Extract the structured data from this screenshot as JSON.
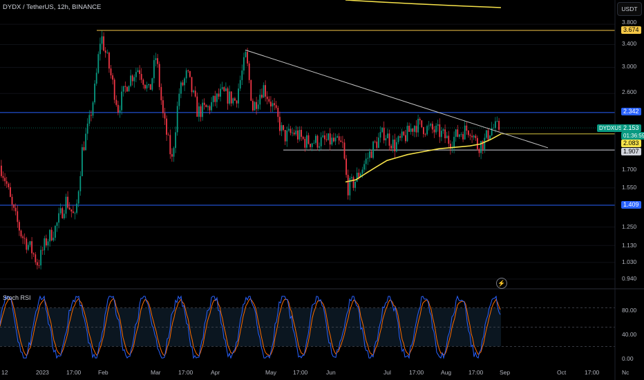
{
  "header": {
    "symbol_title": "DYDX / TetherUS, 12h, BINANCE",
    "currency_button": "USDT"
  },
  "indicator": {
    "title": "Stoch RSI",
    "levels": [
      "80.00",
      "40.00",
      "0.00"
    ],
    "colors": {
      "k": "#2962ff",
      "d": "#ff6d00"
    }
  },
  "price_axis": {
    "ticks": [
      "3.800",
      "3.400",
      "3.000",
      "2.600",
      "1.700",
      "1.550",
      "1.250",
      "1.130",
      "1.030",
      "0.940"
    ]
  },
  "time_axis": {
    "ticks": [
      "12",
      "2023",
      "17:00",
      "Feb",
      "Mar",
      "17:00",
      "Apr",
      "May",
      "17:00",
      "Jun",
      "Jul",
      "17:00",
      "Aug",
      "17:00",
      "Sep",
      "Oct",
      "17:00",
      "Nc"
    ]
  },
  "price_labels": {
    "resistance_top": {
      "value": "3.674",
      "bg": "#f7c948",
      "fg": "#000000"
    },
    "resistance_blue": {
      "value": "2.342",
      "bg": "#2962ff",
      "fg": "#ffffff"
    },
    "symbol_tag": {
      "symbol": "DYDXUSDT",
      "price": "2.153",
      "countdown": "01:36:59",
      "bg": "#089981",
      "fg": "#ffffff"
    },
    "ma_value": {
      "value": "2.083",
      "bg": "#f7e34a",
      "fg": "#000000"
    },
    "support_white": {
      "value": "1.907",
      "bg": "#d1d4dc",
      "fg": "#000000"
    },
    "support_blue": {
      "value": "1.409",
      "bg": "#2962ff",
      "fg": "#ffffff"
    }
  },
  "chart_data": {
    "type": "candlestick",
    "title": "DYDX / TetherUS, 12h, BINANCE",
    "y_scale": "log",
    "ylim": [
      0.9,
      4.2
    ],
    "colors": {
      "up": "#089981",
      "down": "#f23645",
      "moving_average": "#f7e34a",
      "blue_levels": "#2962ff",
      "gold_level": "#f7c948",
      "trendline": "#c8c8c8"
    },
    "horizontal_levels": [
      {
        "value": 3.674,
        "color": "#f7c948"
      },
      {
        "value": 2.342,
        "color": "#2962ff"
      },
      {
        "value": 1.907,
        "color": "#d1d4dc"
      },
      {
        "value": 1.409,
        "color": "#2962ff"
      }
    ],
    "trendline": {
      "start_price": 3.3,
      "end_price": 1.93
    },
    "last_price": 2.153,
    "moving_average_last": 2.083,
    "close_path_anchors": [
      [
        0,
        1.75
      ],
      [
        8,
        1.6
      ],
      [
        16,
        1.4
      ],
      [
        30,
        1.2
      ],
      [
        45,
        1.1
      ],
      [
        54,
        1.02
      ],
      [
        65,
        1.15
      ],
      [
        80,
        1.25
      ],
      [
        95,
        1.45
      ],
      [
        108,
        1.3
      ],
      [
        118,
        1.9
      ],
      [
        128,
        2.2
      ],
      [
        137,
        2.7
      ],
      [
        145,
        3.6
      ],
      [
        155,
        3.1
      ],
      [
        170,
        2.4
      ],
      [
        185,
        2.8
      ],
      [
        200,
        3.0
      ],
      [
        215,
        2.6
      ],
      [
        225,
        3.2
      ],
      [
        235,
        2.3
      ],
      [
        248,
        1.8
      ],
      [
        258,
        2.6
      ],
      [
        270,
        2.9
      ],
      [
        285,
        2.35
      ],
      [
        300,
        2.4
      ],
      [
        320,
        2.6
      ],
      [
        340,
        2.5
      ],
      [
        355,
        3.2
      ],
      [
        365,
        2.4
      ],
      [
        380,
        2.7
      ],
      [
        395,
        2.4
      ],
      [
        410,
        2.05
      ],
      [
        425,
        2.1
      ],
      [
        440,
        2.0
      ],
      [
        460,
        2.0
      ],
      [
        480,
        2.0
      ],
      [
        495,
        1.95
      ],
      [
        502,
        1.55
      ],
      [
        512,
        1.6
      ],
      [
        525,
        1.75
      ],
      [
        540,
        1.95
      ],
      [
        555,
        2.1
      ],
      [
        570,
        1.95
      ],
      [
        585,
        2.05
      ],
      [
        600,
        2.2
      ],
      [
        615,
        2.15
      ],
      [
        635,
        2.1
      ],
      [
        650,
        2.0
      ],
      [
        665,
        2.1
      ],
      [
        680,
        2.15
      ],
      [
        690,
        1.95
      ],
      [
        700,
        2.0
      ],
      [
        710,
        2.15
      ],
      [
        722,
        2.153
      ]
    ],
    "moving_average_path": [
      [
        500,
        1.6
      ],
      [
        515,
        1.62
      ],
      [
        530,
        1.68
      ],
      [
        545,
        1.74
      ],
      [
        560,
        1.8
      ],
      [
        575,
        1.83
      ],
      [
        590,
        1.86
      ],
      [
        605,
        1.88
      ],
      [
        620,
        1.9
      ],
      [
        635,
        1.92
      ],
      [
        650,
        1.93
      ],
      [
        665,
        1.94
      ],
      [
        680,
        1.95
      ],
      [
        695,
        1.97
      ],
      [
        710,
        2.02
      ],
      [
        725,
        2.083
      ]
    ],
    "stoch_rsi_note": "oscillates between 0 and 100 with bands at 80 and 20"
  }
}
